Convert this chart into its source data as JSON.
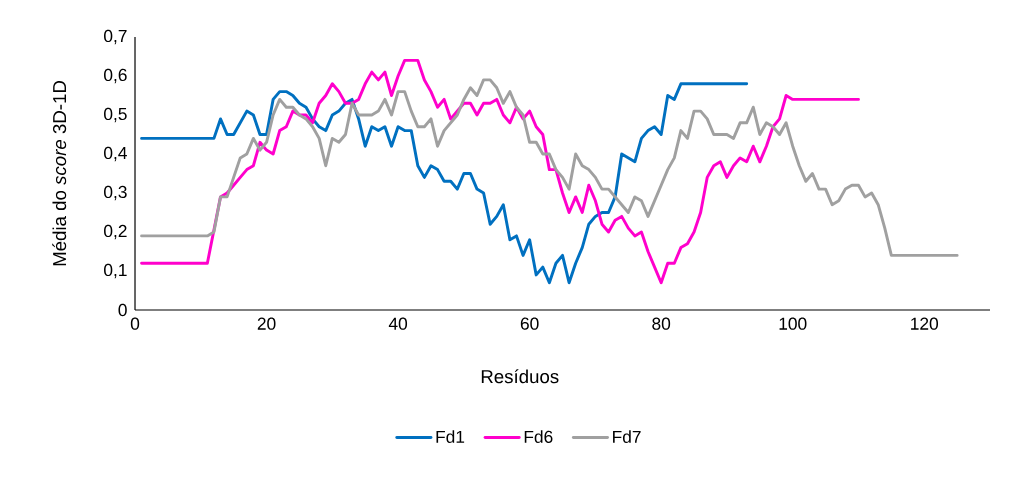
{
  "chart_data": {
    "type": "line",
    "xlabel": "Resíduos",
    "ylabel": "Média do *score* 3D-1D",
    "xlim": [
      0,
      130
    ],
    "xticks": [
      0,
      20,
      40,
      60,
      80,
      100,
      120
    ],
    "ylim": [
      0,
      0.7
    ],
    "yticks": [
      0,
      {
        "value": 0.1,
        "label": "0,1"
      },
      {
        "value": 0.2,
        "label": "0,2"
      },
      {
        "value": 0.3,
        "label": "0,3"
      },
      {
        "value": 0.4,
        "label": "0,4"
      },
      {
        "value": 0.5,
        "label": "0,5"
      },
      {
        "value": 0.6,
        "label": "0,6"
      },
      {
        "value": 0.7,
        "label": "0,7"
      }
    ],
    "grid": false,
    "legend": "bottom",
    "marker": "none",
    "line_style": "solid",
    "series": [
      {
        "name": "Fd1",
        "color": "#0070c0",
        "x": [
          1,
          12,
          13,
          14,
          15,
          17,
          18,
          19,
          20,
          21,
          22,
          23,
          24,
          25,
          26,
          27,
          28,
          29,
          30,
          31,
          32,
          33,
          34,
          35,
          36,
          37,
          38,
          39,
          40,
          41,
          42,
          43,
          44,
          45,
          46,
          47,
          48,
          49,
          50,
          51,
          52,
          53,
          54,
          55,
          56,
          57,
          58,
          59,
          60,
          61,
          62,
          63,
          64,
          65,
          66,
          67,
          68,
          69,
          70,
          71,
          72,
          73,
          74,
          75,
          76,
          77,
          78,
          79,
          80,
          81,
          82,
          83,
          93
        ],
        "values": [
          0.44,
          0.44,
          0.49,
          0.45,
          0.45,
          0.51,
          0.5,
          0.45,
          0.45,
          0.54,
          0.56,
          0.56,
          0.55,
          0.53,
          0.52,
          0.49,
          0.47,
          0.46,
          0.5,
          0.51,
          0.53,
          0.54,
          0.49,
          0.42,
          0.47,
          0.46,
          0.47,
          0.42,
          0.47,
          0.46,
          0.46,
          0.37,
          0.34,
          0.37,
          0.36,
          0.33,
          0.33,
          0.31,
          0.35,
          0.35,
          0.31,
          0.3,
          0.22,
          0.24,
          0.27,
          0.18,
          0.19,
          0.14,
          0.18,
          0.09,
          0.11,
          0.07,
          0.12,
          0.14,
          0.07,
          0.12,
          0.16,
          0.22,
          0.24,
          0.25,
          0.25,
          0.29,
          0.4,
          0.39,
          0.38,
          0.44,
          0.46,
          0.47,
          0.45,
          0.55,
          0.54,
          0.58,
          0.58
        ]
      },
      {
        "name": "Fd6",
        "color": "#ff00cc",
        "x": [
          1,
          11,
          13,
          14,
          15,
          16,
          17,
          18,
          19,
          20,
          21,
          22,
          23,
          24,
          25,
          26,
          27,
          28,
          29,
          30,
          31,
          32,
          33,
          34,
          35,
          36,
          37,
          38,
          39,
          40,
          41,
          42,
          43,
          44,
          45,
          46,
          47,
          48,
          49,
          50,
          51,
          52,
          53,
          54,
          55,
          56,
          57,
          58,
          59,
          60,
          61,
          62,
          63,
          64,
          65,
          66,
          67,
          68,
          69,
          70,
          71,
          72,
          73,
          74,
          75,
          76,
          77,
          78,
          79,
          80,
          81,
          82,
          83,
          84,
          85,
          86,
          87,
          88,
          89,
          90,
          91,
          92,
          93,
          94,
          95,
          96,
          97,
          98,
          99,
          100,
          110
        ],
        "values": [
          0.12,
          0.12,
          0.29,
          0.3,
          0.32,
          0.34,
          0.36,
          0.37,
          0.43,
          0.41,
          0.4,
          0.46,
          0.47,
          0.51,
          0.5,
          0.5,
          0.48,
          0.53,
          0.55,
          0.58,
          0.56,
          0.53,
          0.53,
          0.54,
          0.58,
          0.61,
          0.59,
          0.61,
          0.55,
          0.6,
          0.64,
          0.64,
          0.64,
          0.59,
          0.56,
          0.52,
          0.54,
          0.49,
          0.51,
          0.53,
          0.53,
          0.5,
          0.53,
          0.53,
          0.54,
          0.5,
          0.48,
          0.52,
          0.49,
          0.51,
          0.47,
          0.45,
          0.36,
          0.36,
          0.3,
          0.25,
          0.29,
          0.25,
          0.32,
          0.28,
          0.22,
          0.2,
          0.23,
          0.24,
          0.21,
          0.19,
          0.2,
          0.15,
          0.11,
          0.07,
          0.12,
          0.12,
          0.16,
          0.17,
          0.2,
          0.25,
          0.34,
          0.37,
          0.38,
          0.34,
          0.37,
          0.39,
          0.38,
          0.42,
          0.38,
          0.42,
          0.47,
          0.49,
          0.55,
          0.54,
          0.54
        ]
      },
      {
        "name": "Fd7",
        "color": "#a0a0a0",
        "x": [
          1,
          11,
          12,
          13,
          14,
          15,
          16,
          17,
          18,
          19,
          20,
          21,
          22,
          23,
          24,
          25,
          26,
          27,
          28,
          29,
          30,
          31,
          32,
          33,
          34,
          35,
          36,
          37,
          38,
          39,
          40,
          41,
          42,
          43,
          44,
          45,
          46,
          47,
          48,
          49,
          50,
          51,
          52,
          53,
          54,
          55,
          56,
          57,
          58,
          59,
          60,
          61,
          62,
          63,
          64,
          65,
          66,
          67,
          68,
          69,
          70,
          71,
          72,
          73,
          74,
          75,
          76,
          77,
          78,
          80,
          81,
          82,
          83,
          84,
          85,
          86,
          87,
          88,
          90,
          91,
          92,
          93,
          94,
          95,
          96,
          97,
          98,
          99,
          100,
          101,
          102,
          103,
          104,
          105,
          106,
          107,
          108,
          109,
          110,
          111,
          112,
          113,
          114,
          115,
          125
        ],
        "values": [
          0.19,
          0.19,
          0.2,
          0.29,
          0.29,
          0.34,
          0.39,
          0.4,
          0.44,
          0.41,
          0.43,
          0.5,
          0.54,
          0.52,
          0.52,
          0.5,
          0.49,
          0.47,
          0.44,
          0.37,
          0.44,
          0.43,
          0.45,
          0.53,
          0.5,
          0.5,
          0.5,
          0.51,
          0.54,
          0.5,
          0.56,
          0.56,
          0.51,
          0.47,
          0.47,
          0.49,
          0.42,
          0.46,
          0.48,
          0.5,
          0.54,
          0.57,
          0.55,
          0.59,
          0.59,
          0.57,
          0.53,
          0.56,
          0.52,
          0.5,
          0.43,
          0.43,
          0.4,
          0.4,
          0.36,
          0.34,
          0.31,
          0.4,
          0.37,
          0.36,
          0.34,
          0.31,
          0.31,
          0.29,
          0.27,
          0.25,
          0.29,
          0.28,
          0.24,
          0.32,
          0.36,
          0.39,
          0.46,
          0.44,
          0.51,
          0.51,
          0.49,
          0.45,
          0.45,
          0.44,
          0.48,
          0.48,
          0.52,
          0.45,
          0.48,
          0.47,
          0.45,
          0.48,
          0.42,
          0.37,
          0.33,
          0.35,
          0.31,
          0.31,
          0.27,
          0.28,
          0.31,
          0.32,
          0.32,
          0.29,
          0.3,
          0.27,
          0.21,
          0.14,
          0.14
        ]
      }
    ]
  }
}
